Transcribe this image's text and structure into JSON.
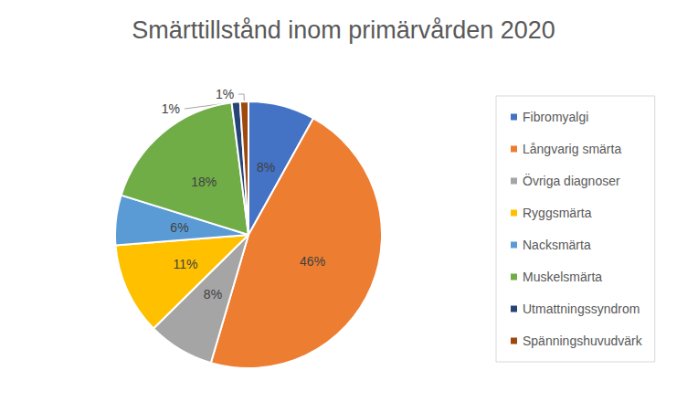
{
  "chart_data": {
    "type": "pie",
    "title": "Smärttillstånd inom primärvården 2020",
    "categories": [
      "Fibromyalgi",
      "Långvarig smärta",
      "Övriga diagnoser",
      "Ryggsmärta",
      "Nacksmärta",
      "Muskelsmärta",
      "Utmattningssyndrom",
      "Spänningshuvudvärk"
    ],
    "values": [
      8,
      46,
      8,
      11,
      6,
      18,
      1,
      1
    ],
    "value_labels": [
      "8%",
      "46%",
      "8%",
      "11%",
      "6%",
      "18%",
      "1%",
      "1%"
    ],
    "colors": [
      "#4472c4",
      "#ed7d31",
      "#a5a5a5",
      "#ffc000",
      "#5b9bd5",
      "#70ad47",
      "#264478",
      "#9e480e"
    ],
    "data_labels": true,
    "legend": "right"
  }
}
